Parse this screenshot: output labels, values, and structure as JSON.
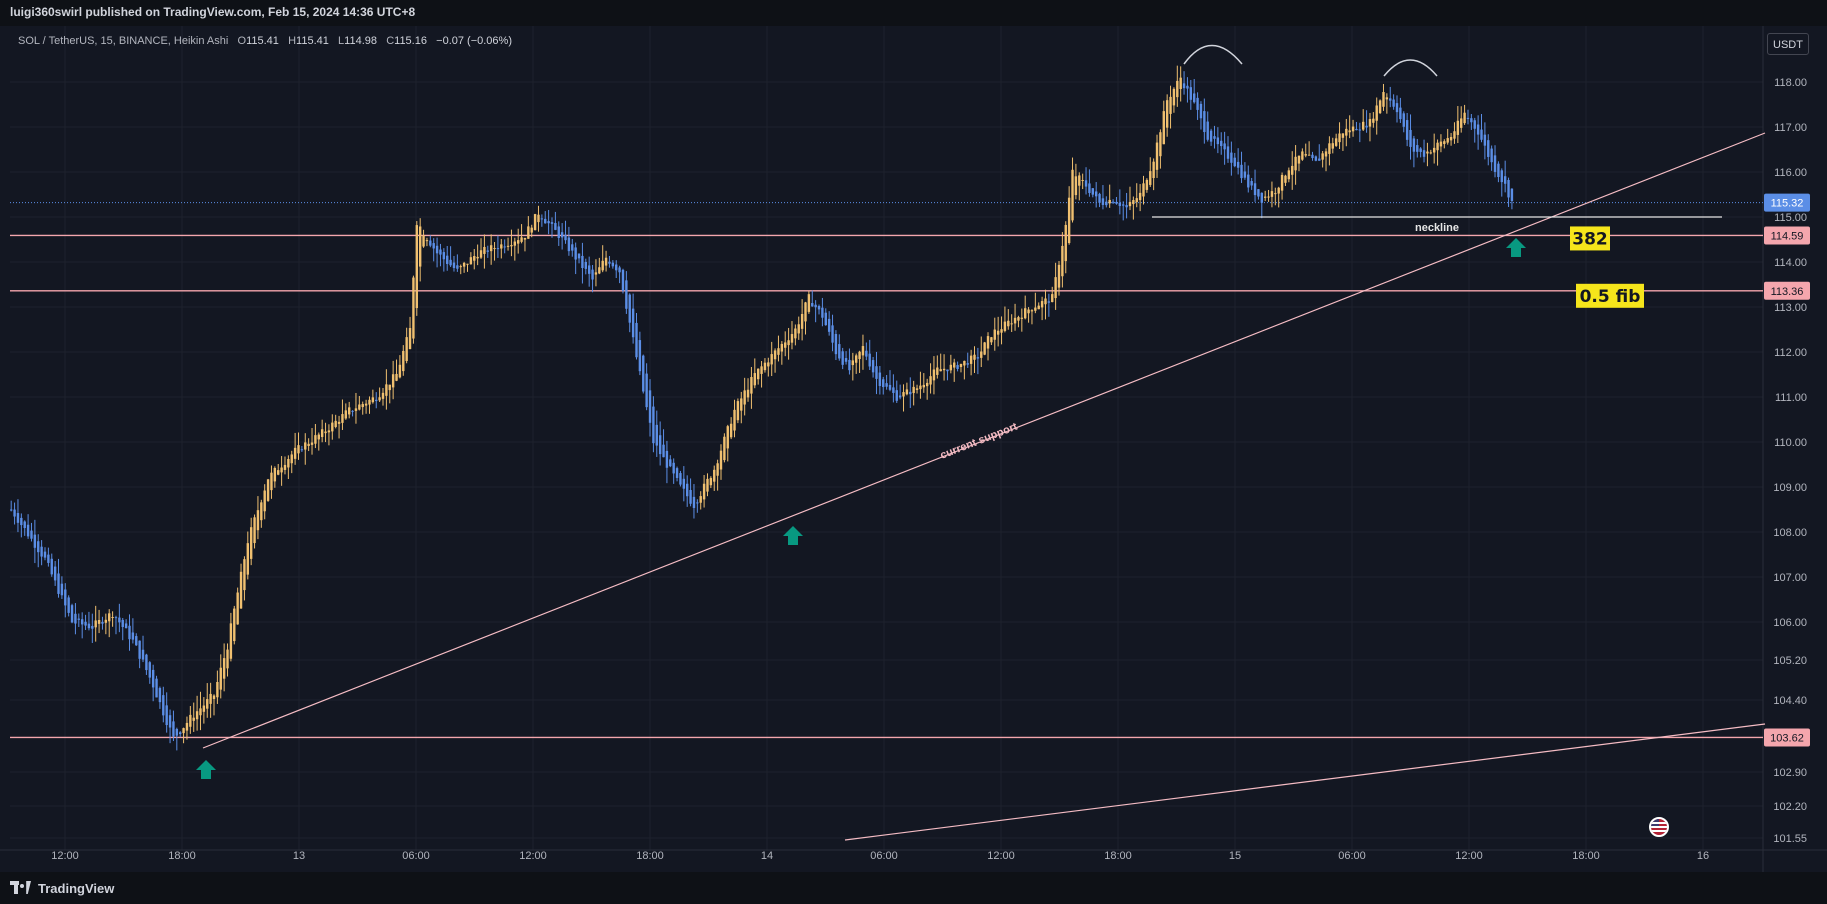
{
  "header": {
    "published": "luigi360swirl published on TradingView.com, Feb 15, 2024 14:36 UTC+8"
  },
  "legend": {
    "symbol": "SOL / TetherUS, 15, BINANCE, Heikin Ashi",
    "o_label": "O",
    "o": "115.41",
    "h_label": "H",
    "h": "115.41",
    "l_label": "L",
    "l": "114.98",
    "c_label": "C",
    "c": "115.16",
    "change": "−0.07 (−0.06%)"
  },
  "currency_button": "USDT",
  "footer": {
    "brand": "TradingView"
  },
  "colors": {
    "background": "#131722",
    "bull": "#f0c070",
    "bear": "#5b8ee6",
    "trendline": "#f5bcc4",
    "level_line": "#f4a6ad",
    "arrow": "#089981",
    "label_bg": "#f5e51b"
  },
  "chart_data": {
    "type": "candlestick",
    "style": "Heikin Ashi",
    "symbol": "SOL / TetherUS",
    "interval": "15",
    "exchange": "BINANCE",
    "x_ticks": [
      "12:00",
      "18:00",
      "13",
      "06:00",
      "12:00",
      "18:00",
      "14",
      "06:00",
      "12:00",
      "18:00",
      "15",
      "06:00",
      "12:00",
      "18:00",
      "16"
    ],
    "y_ticks": [
      "118.00",
      "117.00",
      "116.00",
      "115.00",
      "114.00",
      "113.00",
      "112.00",
      "111.00",
      "110.00",
      "109.00",
      "108.00",
      "107.00",
      "106.00",
      "105.20",
      "104.40",
      "102.90",
      "102.20",
      "101.55"
    ],
    "y_axis_labels": [
      {
        "value": 115.32,
        "text": "115.32",
        "kind": "last"
      },
      {
        "value": 114.59,
        "text": "114.59",
        "kind": "level"
      },
      {
        "value": 113.36,
        "text": "113.36",
        "kind": "level"
      },
      {
        "value": 103.62,
        "text": "103.62",
        "kind": "level"
      }
    ],
    "close_path": [
      [
        0,
        108.5
      ],
      [
        10,
        107.4
      ],
      [
        18,
        106.0
      ],
      [
        24,
        105.9
      ],
      [
        30,
        106.2
      ],
      [
        36,
        105.6
      ],
      [
        42,
        104.7
      ],
      [
        48,
        103.6
      ],
      [
        54,
        104.1
      ],
      [
        60,
        104.5
      ],
      [
        64,
        105.5
      ],
      [
        70,
        107.8
      ],
      [
        76,
        109.2
      ],
      [
        84,
        109.8
      ],
      [
        92,
        110.2
      ],
      [
        100,
        110.7
      ],
      [
        108,
        111.0
      ],
      [
        114,
        111.5
      ],
      [
        118,
        112.5
      ],
      [
        120,
        114.9
      ],
      [
        126,
        114.2
      ],
      [
        132,
        113.8
      ],
      [
        138,
        114.2
      ],
      [
        146,
        114.4
      ],
      [
        152,
        114.6
      ],
      [
        156,
        115.1
      ],
      [
        162,
        114.6
      ],
      [
        168,
        114.0
      ],
      [
        172,
        113.6
      ],
      [
        176,
        114.1
      ],
      [
        180,
        113.8
      ],
      [
        186,
        111.5
      ],
      [
        190,
        110.0
      ],
      [
        194,
        109.5
      ],
      [
        198,
        109.0
      ],
      [
        202,
        108.6
      ],
      [
        208,
        109.4
      ],
      [
        214,
        110.7
      ],
      [
        220,
        111.5
      ],
      [
        226,
        112.0
      ],
      [
        232,
        112.5
      ],
      [
        236,
        113.2
      ],
      [
        240,
        112.8
      ],
      [
        244,
        112.0
      ],
      [
        248,
        111.6
      ],
      [
        252,
        112.1
      ],
      [
        256,
        111.4
      ],
      [
        262,
        111.0
      ],
      [
        268,
        111.2
      ],
      [
        274,
        111.6
      ],
      [
        280,
        111.7
      ],
      [
        286,
        111.9
      ],
      [
        290,
        112.4
      ],
      [
        296,
        112.7
      ],
      [
        302,
        113.0
      ],
      [
        308,
        113.2
      ],
      [
        312,
        114.8
      ],
      [
        314,
        116.0
      ],
      [
        318,
        115.7
      ],
      [
        322,
        115.3
      ],
      [
        326,
        115.4
      ],
      [
        330,
        115.2
      ],
      [
        334,
        115.5
      ],
      [
        338,
        116.3
      ],
      [
        342,
        117.6
      ],
      [
        346,
        118.1
      ],
      [
        350,
        117.5
      ],
      [
        354,
        116.8
      ],
      [
        358,
        116.5
      ],
      [
        362,
        116.2
      ],
      [
        366,
        115.7
      ],
      [
        370,
        115.4
      ],
      [
        374,
        115.6
      ],
      [
        378,
        116.1
      ],
      [
        382,
        116.4
      ],
      [
        386,
        116.2
      ],
      [
        390,
        116.6
      ],
      [
        394,
        116.9
      ],
      [
        398,
        117.0
      ],
      [
        402,
        117.1
      ],
      [
        406,
        117.8
      ],
      [
        410,
        117.4
      ],
      [
        414,
        116.5
      ],
      [
        418,
        116.4
      ],
      [
        422,
        116.6
      ],
      [
        426,
        116.8
      ],
      [
        430,
        117.3
      ],
      [
        434,
        116.9
      ],
      [
        438,
        116.2
      ],
      [
        442,
        115.7
      ],
      [
        445,
        115.16
      ]
    ],
    "annotations": [
      {
        "text": "neckline",
        "type": "horizontal-segment",
        "price": 115.0
      },
      {
        "text": "current support",
        "type": "trendline"
      },
      {
        "text": "382",
        "type": "label",
        "price": 114.59
      },
      {
        "text": "0.5 fib",
        "type": "label",
        "price": 113.36
      },
      {
        "text": "",
        "type": "horizontal-line",
        "price": 114.59
      },
      {
        "text": "",
        "type": "horizontal-line",
        "price": 113.36
      },
      {
        "text": "",
        "type": "horizontal-line",
        "price": 103.62
      },
      {
        "text": "",
        "type": "up-arrow",
        "count": 3
      },
      {
        "text": "",
        "type": "arc",
        "count": 2
      }
    ],
    "grid": true,
    "legend_placement": "top-left"
  }
}
